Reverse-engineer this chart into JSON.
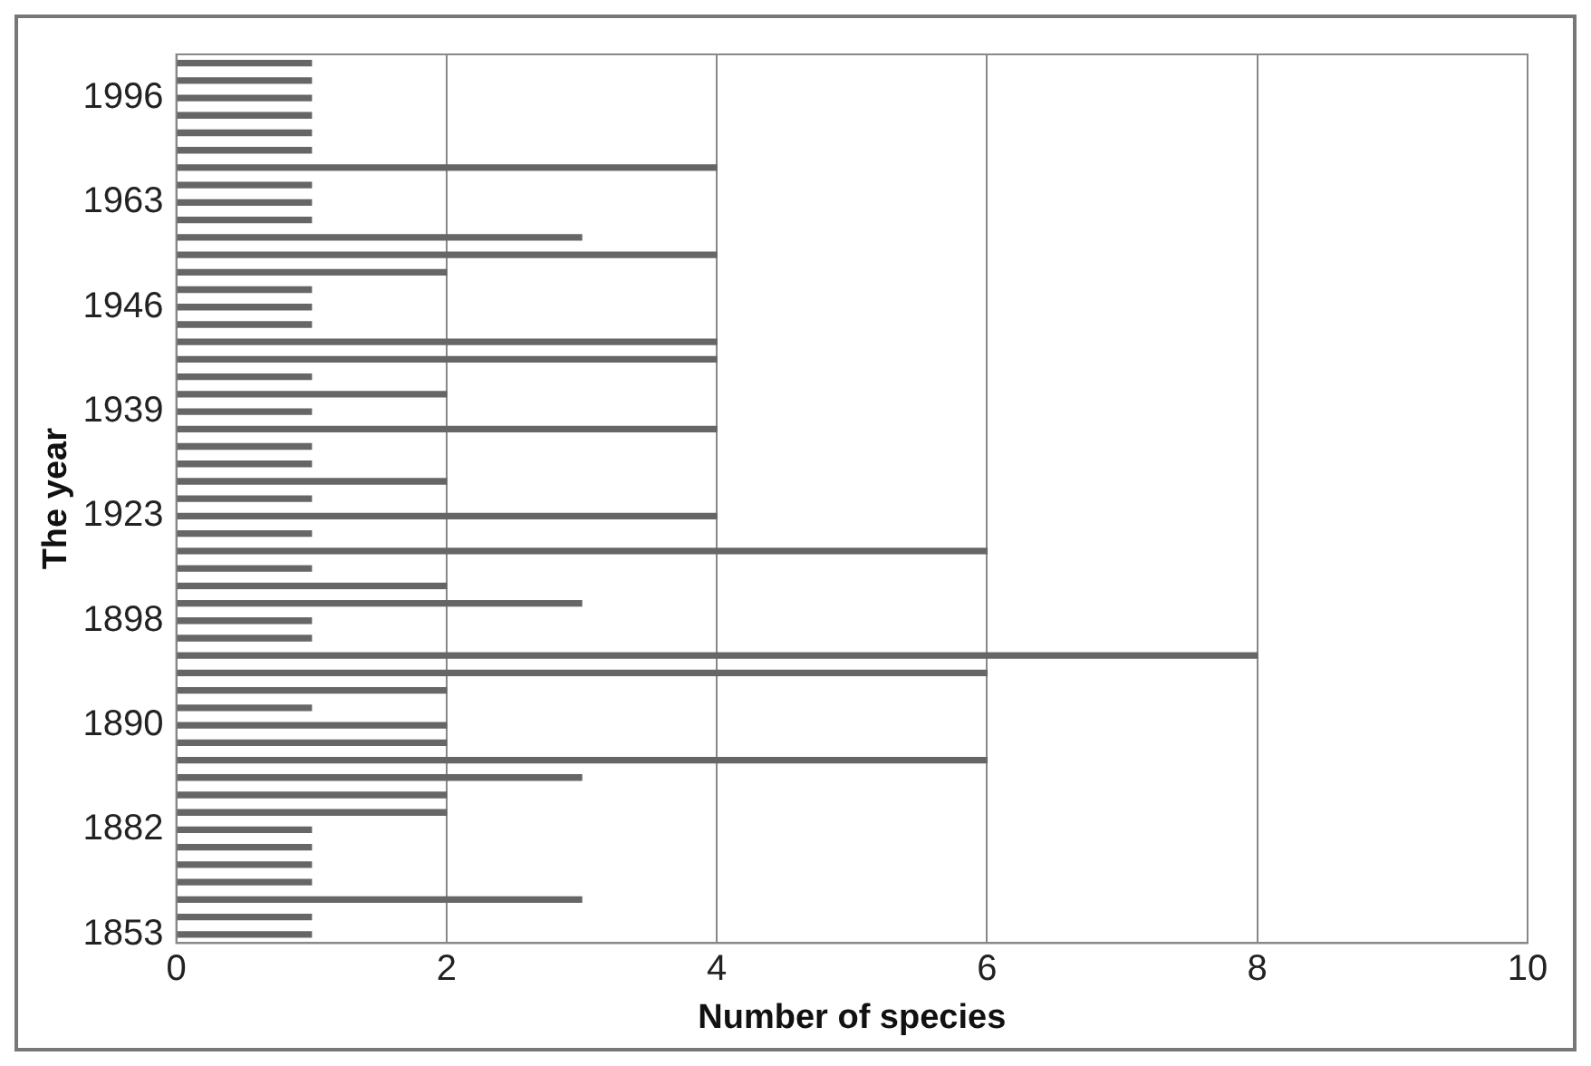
{
  "chart_data": {
    "type": "bar",
    "orientation": "horizontal",
    "xlabel": "Number of species",
    "ylabel": "The year",
    "categories": [
      null,
      null,
      "1996",
      null,
      null,
      null,
      null,
      null,
      "1963",
      null,
      null,
      null,
      null,
      null,
      "1946",
      null,
      null,
      null,
      null,
      null,
      "1939",
      null,
      null,
      null,
      null,
      null,
      "1923",
      null,
      null,
      null,
      null,
      null,
      "1898",
      null,
      null,
      null,
      null,
      null,
      "1890",
      null,
      null,
      null,
      null,
      null,
      "1882",
      null,
      null,
      null,
      null,
      null,
      "1853"
    ],
    "values": [
      1,
      1,
      1,
      1,
      1,
      1,
      4,
      1,
      1,
      1,
      3,
      4,
      2,
      1,
      1,
      1,
      4,
      4,
      1,
      2,
      1,
      4,
      1,
      1,
      2,
      1,
      4,
      1,
      6,
      1,
      2,
      3,
      1,
      1,
      8,
      6,
      2,
      1,
      2,
      2,
      6,
      3,
      2,
      2,
      1,
      1,
      1,
      1,
      3,
      1,
      1
    ],
    "color": "#666666",
    "xlim": [
      0,
      10
    ],
    "xticks": [
      0,
      2,
      4,
      6,
      8,
      10
    ],
    "grid": "x",
    "legend": false
  }
}
